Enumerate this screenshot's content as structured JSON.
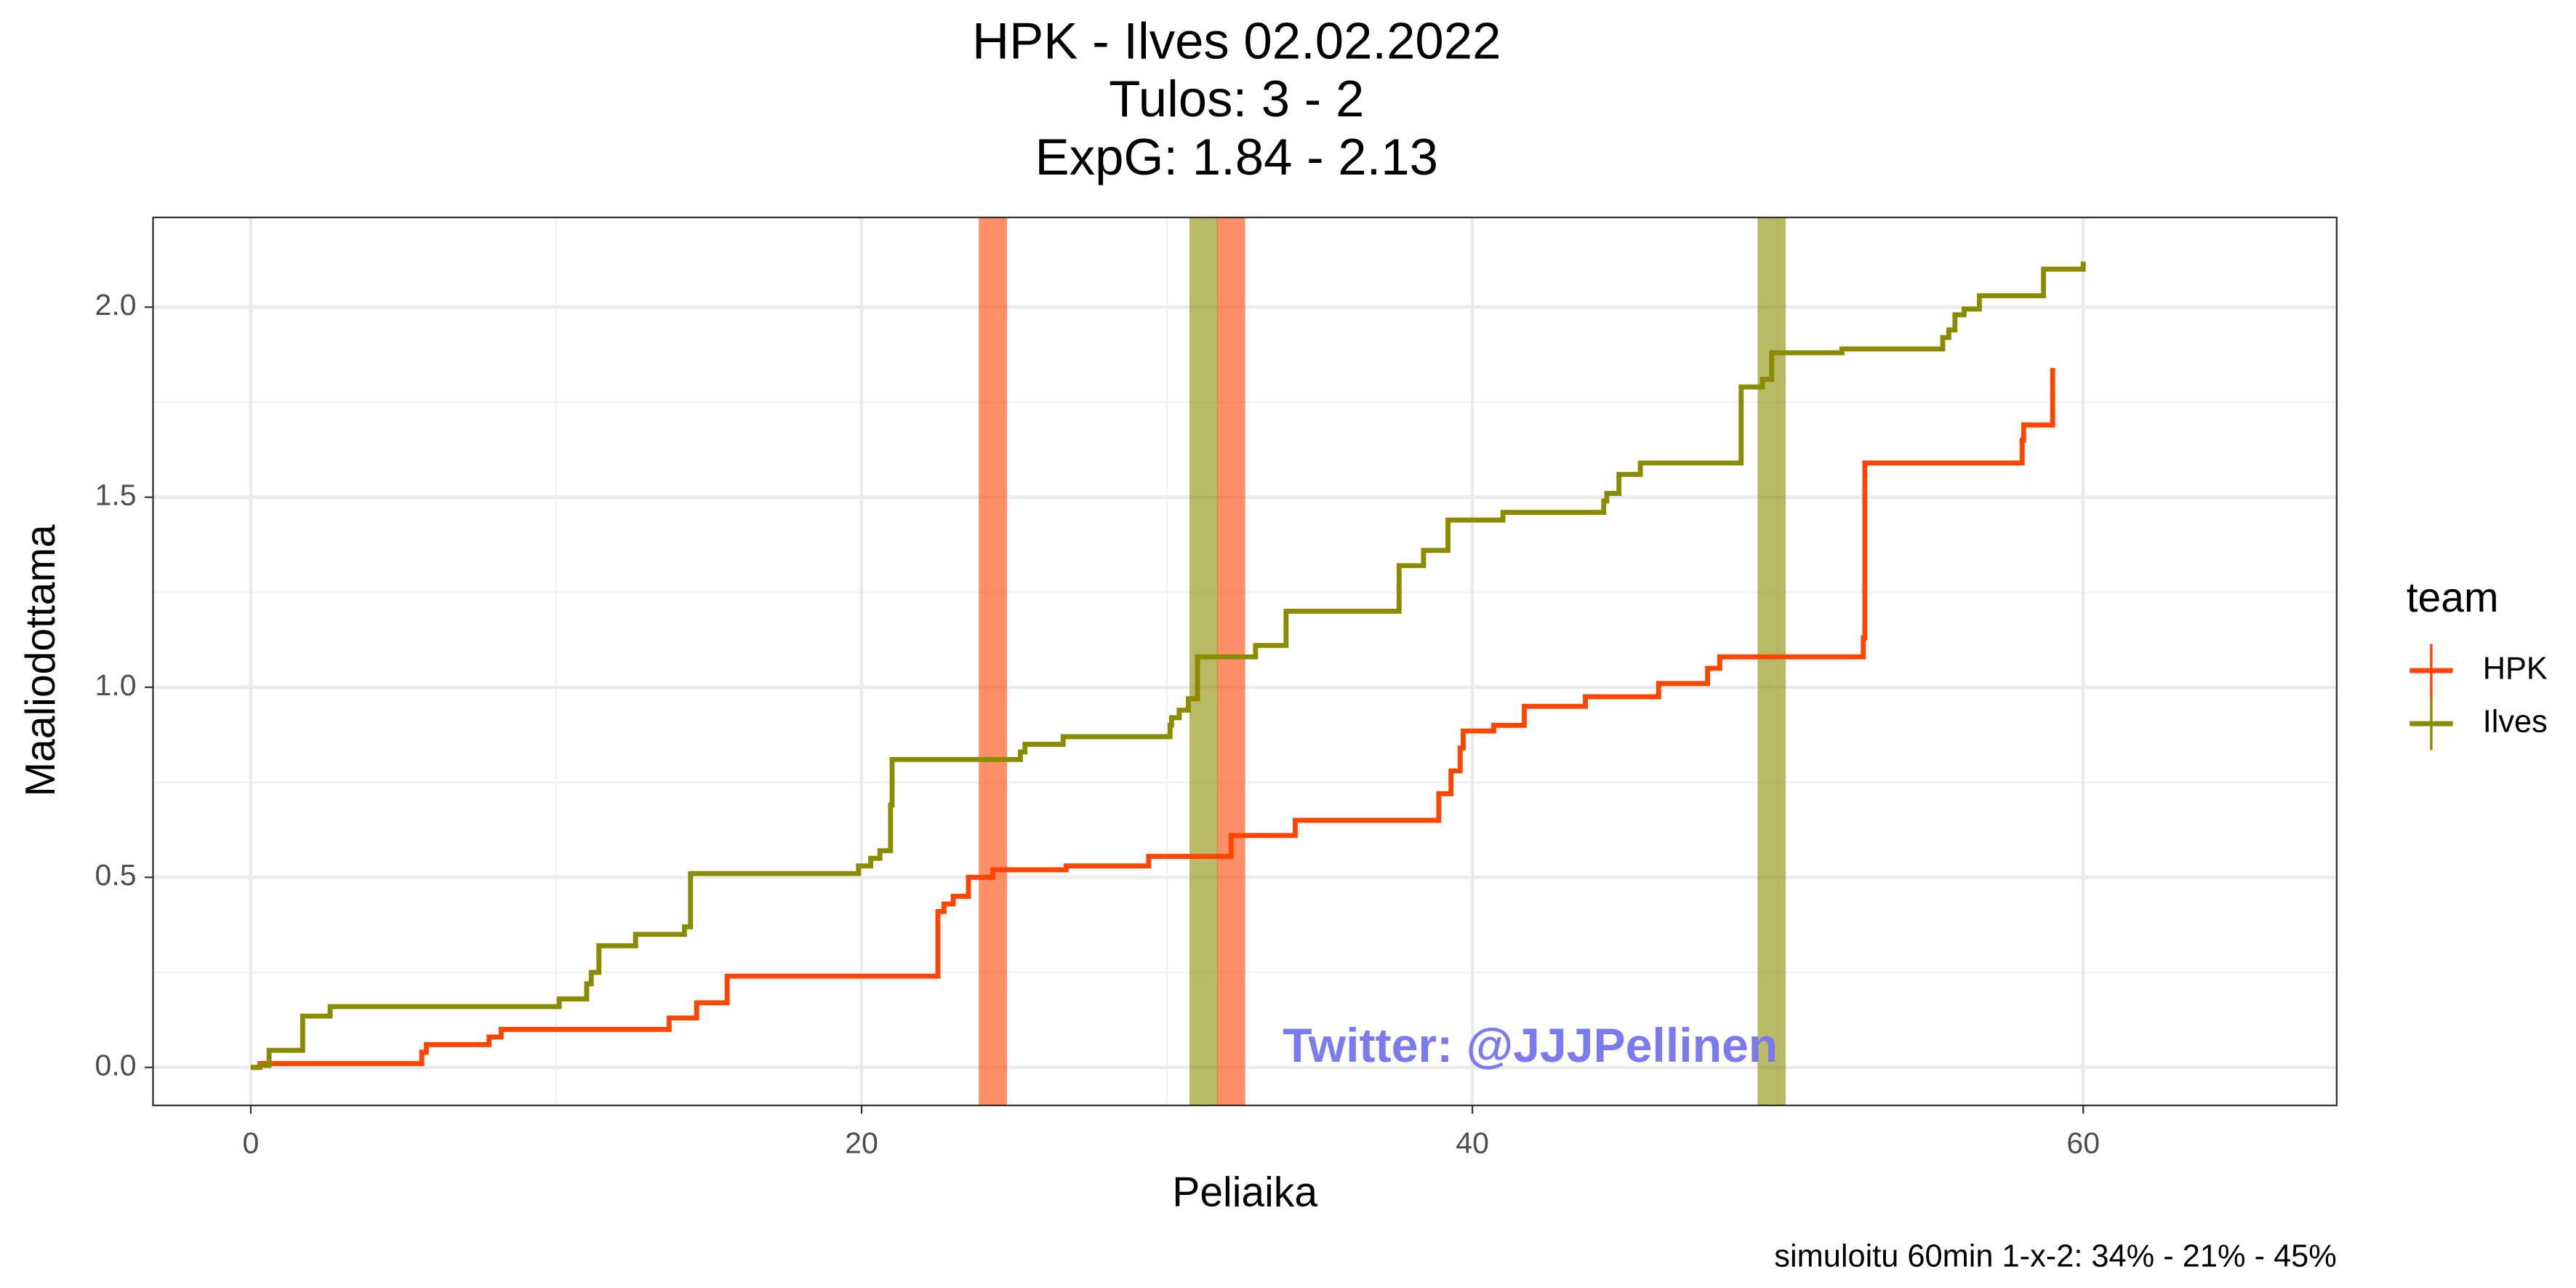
{
  "chart_data": {
    "type": "step",
    "title": "HPK - Ilves 02.02.2022",
    "subtitle": [
      "Tulos: 3 - 2",
      "ExpG: 1.84 - 2.13"
    ],
    "x_label": "Peliaika",
    "y_label": "Maaliodottama",
    "caption": "simuloitu 60min 1-x-2:  34% - 21% - 45%",
    "annotation": "Twitter: @JJJPellinen",
    "legend_title": "team",
    "xlim": [
      -3.2,
      68.3
    ],
    "ylim": [
      -0.1,
      2.236
    ],
    "xticks": [
      0,
      20,
      40,
      60
    ],
    "yticks": [
      {
        "value": 0,
        "label": "0.0"
      },
      0.5,
      {
        "value": 1,
        "label": "1.0"
      },
      1.5,
      {
        "value": 2,
        "label": "2.0"
      }
    ],
    "grid": true,
    "series": [
      {
        "name": "HPK",
        "color": "#ff4500",
        "x": [
          0,
          0.3,
          5.6,
          5.75,
          7.8,
          8.2,
          13.7,
          14.6,
          15.6,
          22.5,
          22.7,
          23.0,
          23.5,
          24.3,
          26.7,
          29.4,
          32.1,
          34.2,
          38.9,
          39.3,
          39.6,
          39.7,
          40.7,
          41.7,
          43.7,
          46.1,
          47.7,
          48.1,
          52.8,
          52.85,
          58.0,
          58.05,
          59.0
        ],
        "values": [
          0,
          0.01,
          0.04,
          0.06,
          0.08,
          0.1,
          0.13,
          0.17,
          0.24,
          0.41,
          0.43,
          0.45,
          0.5,
          0.52,
          0.53,
          0.555,
          0.61,
          0.65,
          0.72,
          0.78,
          0.84,
          0.885,
          0.9,
          0.95,
          0.975,
          1.01,
          1.05,
          1.08,
          1.13,
          1.59,
          1.65,
          1.69,
          1.84
        ],
        "goals": [
          24.3,
          32.1
        ]
      },
      {
        "name": "Ilves",
        "color": "#8b8b00",
        "x": [
          0,
          0.3,
          0.6,
          1.7,
          2.6,
          10.1,
          11.0,
          11.15,
          11.4,
          12.6,
          14.2,
          14.4,
          19.9,
          20.3,
          20.6,
          20.95,
          21.0,
          25.2,
          25.35,
          26.6,
          30.1,
          30.15,
          30.4,
          30.7,
          31.0,
          32.9,
          33.9,
          37.6,
          38.4,
          39.2,
          41.0,
          44.3,
          44.4,
          44.8,
          45.5,
          48.8,
          49.5,
          49.8,
          52.1,
          55.4,
          55.6,
          55.8,
          56.1,
          56.6,
          58.7,
          60.0
        ],
        "values": [
          0,
          0.005,
          0.045,
          0.135,
          0.16,
          0.18,
          0.22,
          0.25,
          0.32,
          0.35,
          0.37,
          0.51,
          0.53,
          0.55,
          0.57,
          0.69,
          0.81,
          0.83,
          0.85,
          0.87,
          0.9,
          0.92,
          0.94,
          0.97,
          1.08,
          1.11,
          1.2,
          1.32,
          1.36,
          1.44,
          1.46,
          1.49,
          1.51,
          1.56,
          1.59,
          1.79,
          1.81,
          1.88,
          1.89,
          1.92,
          1.94,
          1.98,
          1.995,
          2.03,
          2.1,
          2.12
        ],
        "goals": [
          31.2,
          49.8
        ]
      }
    ]
  }
}
